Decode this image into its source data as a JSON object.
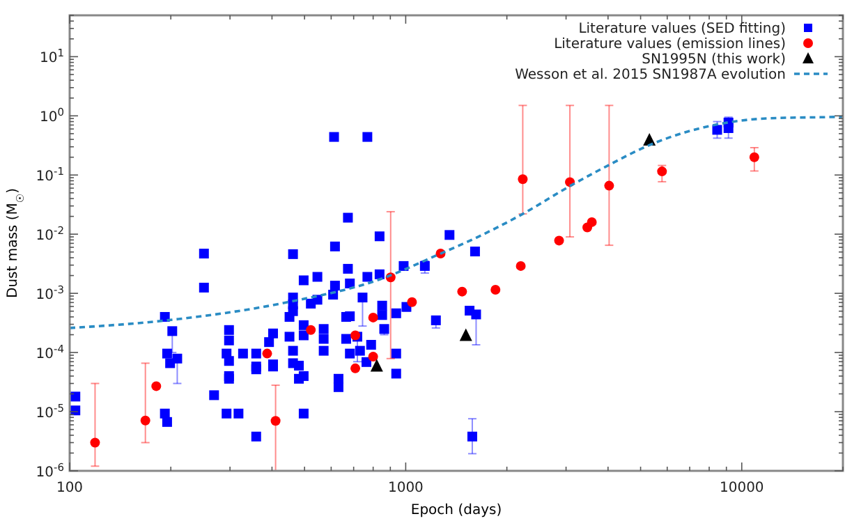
{
  "chart_data": {
    "type": "scatter",
    "xlabel": "Epoch (days)",
    "ylabel": "Dust mass (M$_{☉}$)",
    "log": "xy",
    "xlim": [
      100,
      20000
    ],
    "ylim": [
      1e-06,
      50
    ],
    "xticks": [
      100,
      1000,
      10000
    ],
    "yticks": [
      {
        "value": 1e-06,
        "label": "10$^{-6}$"
      },
      {
        "value": 1e-05,
        "label": "10$^{-5}$"
      },
      {
        "value": 0.0001,
        "label": "10$^{-4}$"
      },
      {
        "value": 0.001,
        "label": "10$^{-3}$"
      },
      {
        "value": 0.01,
        "label": "10$^{-2}$"
      },
      {
        "value": 0.1,
        "label": "10$^{-1}$"
      },
      {
        "value": 1,
        "label": "10$^{0}$"
      },
      {
        "value": 10,
        "label": "10$^{1}$"
      }
    ],
    "legend": "top right",
    "series": [
      {
        "name": "Literature values (SED fitting)",
        "marker": "square",
        "color": "#0000ff",
        "x": [
          104,
          104,
          192,
          202,
          195,
          199,
          209,
          192,
          195,
          251,
          251,
          269,
          298,
          298,
          293,
          298,
          298,
          298,
          293,
          318,
          328,
          359,
          359,
          359,
          359,
          392,
          403,
          403,
          403,
          451,
          451,
          462,
          462,
          462,
          462,
          462,
          462,
          481,
          481,
          497,
          497,
          497,
          497,
          497,
          522,
          546,
          546,
          570,
          570,
          570,
          608,
          612,
          616,
          616,
          631,
          631,
          665,
          665,
          673,
          673,
          682,
          682,
          682,
          718,
          731,
          744,
          764,
          769,
          769,
          789,
          836,
          836,
          851,
          851,
          863,
          937,
          937,
          937,
          986,
          1005,
          1140,
          1230,
          1350,
          1549,
          1578,
          1608,
          1620,
          8450,
          9130,
          9130
        ],
        "values": [
          1.8e-05,
          1.05e-05,
          0.0004,
          0.00023,
          9.6e-05,
          6.6e-05,
          7.9e-05,
          9.3e-06,
          6.7e-06,
          0.0047,
          0.00125,
          1.9e-05,
          0.00024,
          0.00016,
          9.6e-05,
          7.2e-05,
          4e-05,
          3.6e-05,
          9.3e-06,
          9.3e-06,
          9.6e-05,
          9.6e-05,
          5.8e-05,
          5.2e-05,
          3.8e-06,
          0.00015,
          0.00021,
          6.3e-05,
          5.8e-05,
          0.0004,
          0.000185,
          0.0046,
          0.00085,
          0.00065,
          0.0005,
          0.000107,
          6.6e-05,
          6e-05,
          3.6e-05,
          0.00166,
          0.00029,
          0.000195,
          4e-05,
          9.3e-06,
          0.00067,
          0.0019,
          0.00078,
          0.00025,
          0.00017,
          0.000107,
          0.00095,
          0.44,
          0.0062,
          0.00135,
          3.6e-05,
          2.6e-05,
          0.0004,
          0.00017,
          0.019,
          0.0026,
          0.00041,
          0.00147,
          9.6e-05,
          0.000185,
          0.000107,
          0.00085,
          6.9e-05,
          0.0019,
          0.44,
          0.000135,
          0.0021,
          0.0092,
          0.00062,
          0.00043,
          0.00025,
          0.00046,
          9.6e-05,
          4.4e-05,
          0.0029,
          0.00059,
          0.0029,
          0.00035,
          0.0097,
          0.00051,
          3.8e-06,
          0.0051,
          0.00044,
          0.58,
          0.77,
          0.62
        ],
        "errors": [
          null,
          null,
          null,
          [
            0.0001,
            0.00023
          ],
          null,
          null,
          [
            3e-05,
            7.9e-05
          ],
          null,
          null,
          null,
          null,
          null,
          null,
          null,
          null,
          null,
          null,
          null,
          null,
          null,
          null,
          null,
          null,
          null,
          null,
          null,
          null,
          null,
          null,
          null,
          null,
          null,
          null,
          null,
          null,
          null,
          null,
          null,
          null,
          null,
          null,
          null,
          null,
          null,
          null,
          null,
          null,
          null,
          null,
          null,
          [
            0.00085,
            0.00105
          ],
          null,
          null,
          null,
          null,
          null,
          null,
          null,
          null,
          null,
          null,
          null,
          null,
          [
            7e-05,
            0.000185
          ],
          null,
          [
            0.00028,
            0.00085
          ],
          null,
          null,
          null,
          null,
          null,
          null,
          null,
          null,
          [
            0.0002,
            0.00025
          ],
          null,
          null,
          null,
          null,
          [
            0.0005,
            0.00065
          ],
          [
            0.0022,
            0.0035
          ],
          [
            0.00026,
            0.00035
          ],
          null,
          null,
          [
            1.95e-06,
            7.6e-06
          ],
          null,
          [
            0.000135,
            0.00044
          ],
          [
            0.42,
            0.8
          ],
          [
            0.42,
            0.95
          ],
          null
        ]
      },
      {
        "name": "Literature values (emission lines)",
        "marker": "circle",
        "color": "#ff0000",
        "x": [
          119,
          168,
          181,
          387,
          410,
          522,
          708,
          708,
          800,
          800,
          902,
          1044,
          1270,
          1472,
          1850,
          2200,
          2230,
          2860,
          3080,
          3470,
          3580,
          4030,
          5790,
          10900
        ],
        "values": [
          3e-06,
          7.1e-06,
          2.7e-05,
          9.6e-05,
          7e-06,
          0.00024,
          0.000195,
          5.4e-05,
          0.00039,
          8.5e-05,
          0.00186,
          0.00071,
          0.0047,
          0.00107,
          0.00115,
          0.0029,
          0.085,
          0.0078,
          0.076,
          0.013,
          0.016,
          0.066,
          0.115,
          0.2
        ],
        "errors": [
          [
            1.2e-06,
            3e-05
          ],
          [
            3e-06,
            6.6e-05
          ],
          null,
          null,
          [
            1e-06,
            2.8e-05
          ],
          null,
          null,
          null,
          null,
          null,
          [
            7.9e-05,
            0.024
          ],
          null,
          null,
          null,
          null,
          null,
          [
            0.022,
            1.5
          ],
          null,
          [
            0.009,
            1.5
          ],
          null,
          null,
          [
            0.0065,
            1.5
          ],
          [
            0.077,
            0.145
          ],
          [
            0.117,
            0.29
          ]
        ]
      },
      {
        "name": "SN1995N (this work)",
        "marker": "triangle",
        "color": "#000000",
        "x": [
          820,
          1510,
          5310
        ],
        "values": [
          5.9e-05,
          0.000195,
          0.39
        ]
      },
      {
        "name": "Wesson et al. 2015 SN1987A evolution",
        "type": "line",
        "marker": "none",
        "line_style": "dashed",
        "color": "#2a8cc4",
        "x": [
          100,
          195,
          446,
          841,
          1270,
          1585,
          2230,
          3080,
          4000,
          5310,
          8280,
          12100,
          18900,
          20000
        ],
        "values": [
          0.00026,
          0.00035,
          0.00071,
          0.00174,
          0.0047,
          0.0082,
          0.022,
          0.065,
          0.145,
          0.32,
          0.7,
          0.91,
          0.96,
          0.97
        ]
      }
    ]
  }
}
